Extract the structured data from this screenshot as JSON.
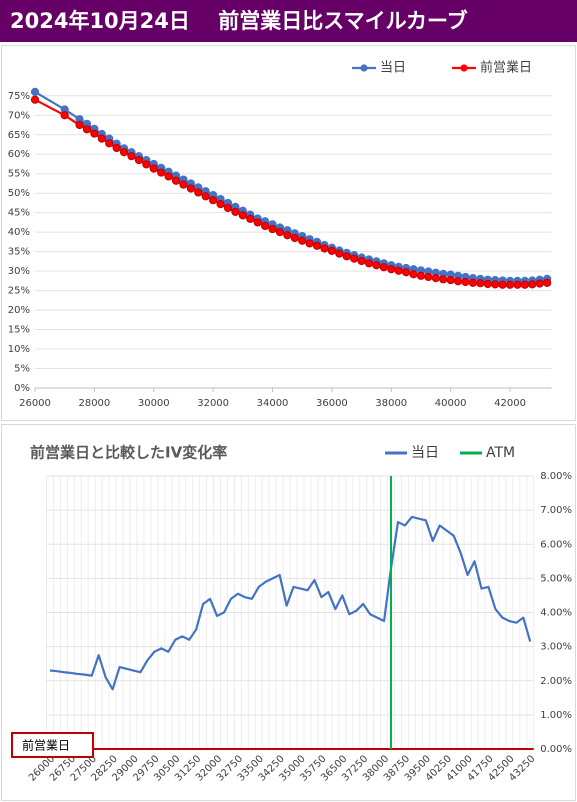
{
  "header": {
    "title": "2024年10月24日　 前営業日比スマイルカーブ"
  },
  "chart_data": [
    {
      "type": "line",
      "x": [
        26000,
        27000,
        27500,
        27750,
        28000,
        28250,
        28500,
        28750,
        29000,
        29250,
        29500,
        29750,
        30000,
        30250,
        30500,
        30750,
        31000,
        31250,
        31500,
        31750,
        32000,
        32250,
        32500,
        32750,
        33000,
        33250,
        33500,
        33750,
        34000,
        34250,
        34500,
        34750,
        35000,
        35250,
        35500,
        35750,
        36000,
        36250,
        36500,
        36750,
        37000,
        37250,
        37500,
        37750,
        38000,
        38250,
        38500,
        38750,
        39000,
        39250,
        39500,
        39750,
        40000,
        40250,
        40500,
        40750,
        41000,
        41250,
        41500,
        41750,
        42000,
        42250,
        42500,
        42750,
        43000,
        43250
      ],
      "series": [
        {
          "name": "当日",
          "color": "#4472c4",
          "values": [
            76,
            71.5,
            69,
            67.8,
            66.5,
            65.2,
            64,
            62.7,
            61.5,
            60.5,
            59.5,
            58.5,
            57.5,
            56.5,
            55.5,
            54.5,
            53.5,
            52.5,
            51.5,
            50.5,
            49.5,
            48.5,
            47.5,
            46.5,
            45.5,
            44.5,
            43.5,
            42.8,
            42,
            41.2,
            40.5,
            39.7,
            39,
            38.2,
            37.5,
            36.7,
            36,
            35.3,
            34.7,
            34.1,
            33.5,
            33,
            32.5,
            32,
            31.5,
            31.1,
            30.8,
            30.5,
            30.2,
            29.9,
            29.6,
            29.3,
            29.1,
            28.8,
            28.5,
            28.2,
            28,
            27.8,
            27.7,
            27.6,
            27.5,
            27.5,
            27.5,
            27.6,
            27.8,
            28
          ]
        },
        {
          "name": "前営業日",
          "color": "#ff0000",
          "values": [
            74,
            70,
            67.5,
            66.4,
            65.3,
            64,
            62.8,
            61.6,
            60.5,
            59.5,
            58.5,
            57.4,
            56.3,
            55.3,
            54.3,
            53.2,
            52.2,
            51.2,
            50.2,
            49.2,
            48.2,
            47.2,
            46.2,
            45.2,
            44.3,
            43.4,
            42.5,
            41.6,
            40.8,
            40,
            39.2,
            38.5,
            37.8,
            37.1,
            36.5,
            35.8,
            35.2,
            34.5,
            33.8,
            33.2,
            32.6,
            32,
            31.5,
            31,
            30.5,
            30.1,
            29.7,
            29.2,
            28.8,
            28.5,
            28.2,
            27.9,
            27.7,
            27.4,
            27.2,
            27,
            26.9,
            26.7,
            26.6,
            26.5,
            26.5,
            26.5,
            26.5,
            26.6,
            26.8,
            27
          ]
        }
      ],
      "xlim": [
        26000,
        43400
      ],
      "xticks": [
        26000,
        28000,
        30000,
        32000,
        34000,
        36000,
        38000,
        40000,
        42000
      ],
      "ylim": [
        0,
        77
      ],
      "yticks": [
        {
          "value": 0,
          "label": "0%"
        },
        {
          "value": 5,
          "label": "5%"
        },
        {
          "value": 10,
          "label": "10%"
        },
        {
          "value": 15,
          "label": "15%"
        },
        {
          "value": 20,
          "label": "20%"
        },
        {
          "value": 25,
          "label": "25%"
        },
        {
          "value": 30,
          "label": "30%"
        },
        {
          "value": 35,
          "label": "35%"
        },
        {
          "value": 40,
          "label": "40%"
        },
        {
          "value": 45,
          "label": "45%"
        },
        {
          "value": 50,
          "label": "50%"
        },
        {
          "value": 55,
          "label": "55%"
        },
        {
          "value": 60,
          "label": "60%"
        },
        {
          "value": 65,
          "label": "65%"
        },
        {
          "value": 70,
          "label": "70%"
        },
        {
          "value": 75,
          "label": "75%"
        }
      ],
      "grid": true
    },
    {
      "type": "line",
      "title": "前営業日と比較したIV変化率",
      "categories": [
        26000,
        null,
        null,
        26750,
        null,
        null,
        27500,
        null,
        null,
        28250,
        null,
        null,
        29000,
        null,
        null,
        29750,
        null,
        null,
        30500,
        null,
        null,
        31250,
        null,
        null,
        32000,
        null,
        null,
        32750,
        null,
        null,
        33500,
        null,
        null,
        34250,
        null,
        null,
        35000,
        null,
        null,
        35750,
        null,
        null,
        36500,
        null,
        null,
        37250,
        null,
        null,
        38000,
        null,
        null,
        38750,
        null,
        null,
        39500,
        null,
        null,
        40250,
        null,
        null,
        41000,
        null,
        null,
        41750,
        null,
        null,
        42500,
        null,
        null,
        43250
      ],
      "series": [
        {
          "name": "当日",
          "color": "#4472c4",
          "axis": "y2",
          "values": [
            2.3,
            2.28,
            2.25,
            2.23,
            2.2,
            2.18,
            2.15,
            2.75,
            2.1,
            1.75,
            2.4,
            2.35,
            2.3,
            2.25,
            2.6,
            2.85,
            2.95,
            2.85,
            3.2,
            3.3,
            3.2,
            3.5,
            4.25,
            4.4,
            3.9,
            4.0,
            4.4,
            4.55,
            4.45,
            4.4,
            4.75,
            4.9,
            5.0,
            5.1,
            4.2,
            4.75,
            4.7,
            4.65,
            4.95,
            4.45,
            4.6,
            4.1,
            4.5,
            3.95,
            4.05,
            4.25,
            3.95,
            3.85,
            3.75,
            5.3,
            6.65,
            6.55,
            6.8,
            6.75,
            6.7,
            6.1,
            6.55,
            6.4,
            6.25,
            5.75,
            5.1,
            5.5,
            4.7,
            4.75,
            4.1,
            3.85,
            3.75,
            3.7,
            3.85,
            3.15
          ]
        }
      ],
      "atm": {
        "name": "ATM",
        "color": "#00b050",
        "x": 38250
      },
      "baseline": {
        "label": "前営業日",
        "color": "#c00000",
        "value": 0
      },
      "y2lim": [
        0,
        8
      ],
      "y2ticks": [
        {
          "value": 0,
          "label": "0.00%"
        },
        {
          "value": 1,
          "label": "1.00%"
        },
        {
          "value": 2,
          "label": "2.00%"
        },
        {
          "value": 3,
          "label": "3.00%"
        },
        {
          "value": 4,
          "label": "4.00%"
        },
        {
          "value": 5,
          "label": "5.00%"
        },
        {
          "value": 6,
          "label": "6.00%"
        },
        {
          "value": 7,
          "label": "7.00%"
        },
        {
          "value": 8,
          "label": "8.00%"
        }
      ],
      "grid": true
    }
  ]
}
